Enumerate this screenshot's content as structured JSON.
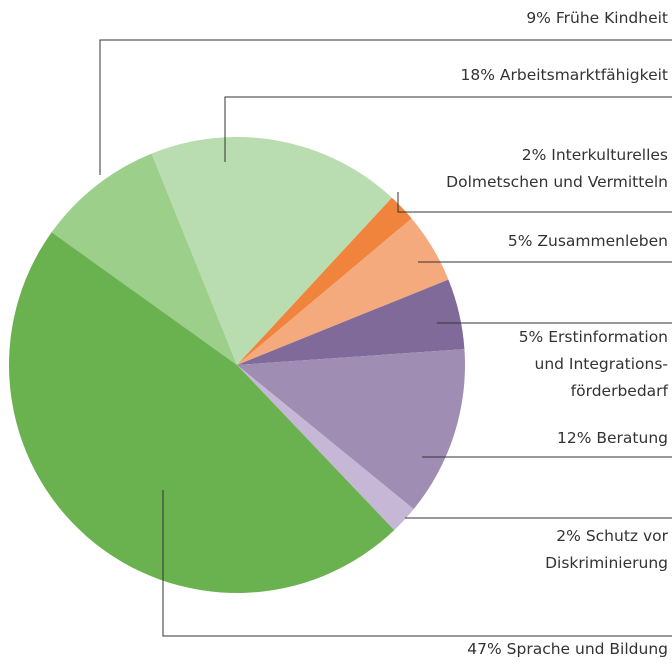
{
  "chart_data": {
    "type": "pie",
    "categories": [
      [
        "Frühe Kindheit"
      ],
      [
        "Arbeitsmarktfähigkeit"
      ],
      [
        "Interkulturelles",
        "Dolmetschen und Vermitteln"
      ],
      [
        "Zusammenleben"
      ],
      [
        "Erstinformation",
        "und Integrations-",
        "förderbedarf"
      ],
      [
        "Beratung"
      ],
      [
        "Schutz vor",
        "Diskriminierung"
      ],
      [
        "Sprache und Bildung"
      ]
    ],
    "values": [
      9,
      18,
      2,
      5,
      5,
      12,
      2,
      47
    ],
    "value_labels": [
      "9%",
      "18%",
      "2%",
      "5%",
      "5%",
      "12%",
      "2%",
      "47%"
    ],
    "colors": [
      "#9ccf8a",
      "#b9ddb0",
      "#f0843c",
      "#f4aa7c",
      "#7f6a9a",
      "#a08db4",
      "#c7b7d6",
      "#6ab150"
    ]
  }
}
